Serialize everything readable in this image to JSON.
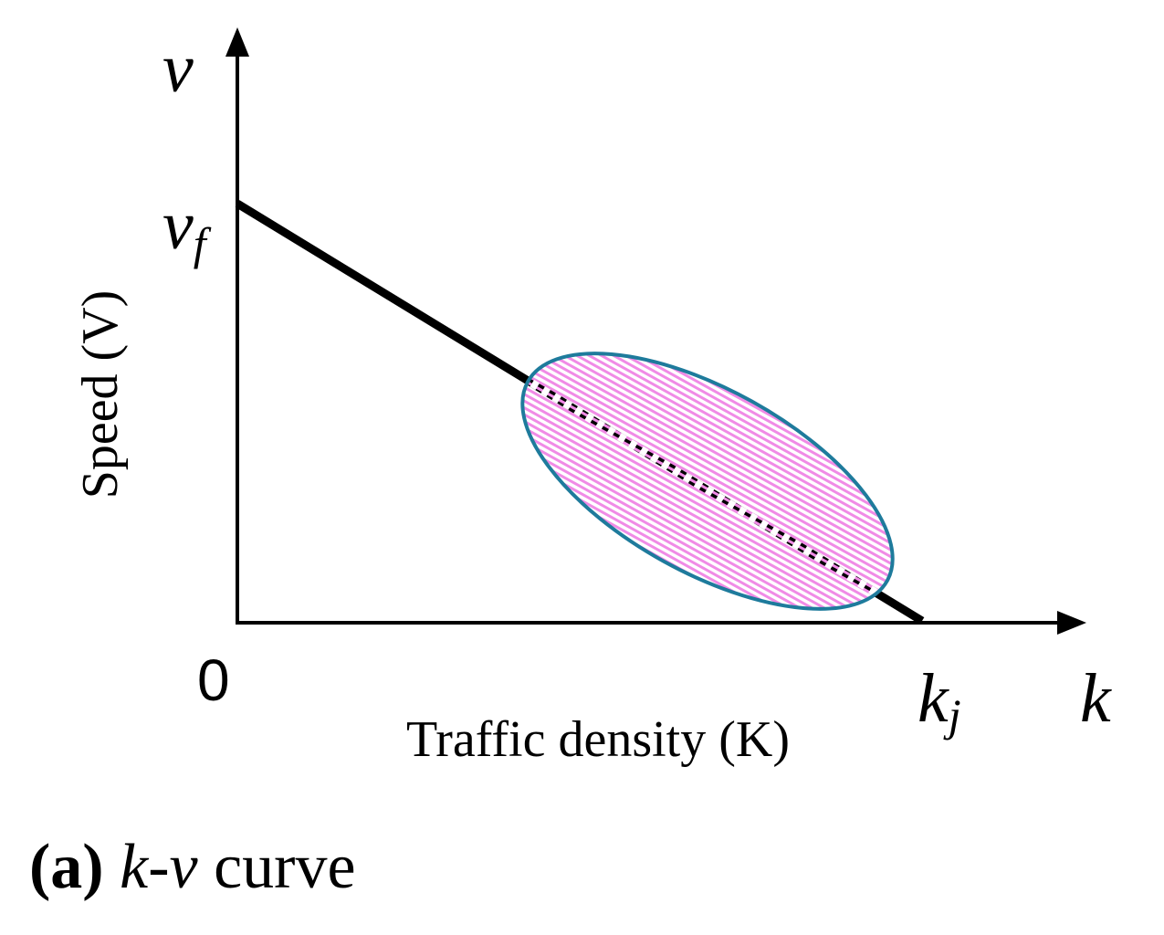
{
  "diagram": {
    "y_axis_symbol": "v",
    "x_axis_symbol": "k",
    "free_flow_speed_base": "v",
    "free_flow_speed_sub": "f",
    "jam_density_base": "k",
    "jam_density_sub": "j",
    "origin_label": "0",
    "y_axis_label": "Speed (V)",
    "x_axis_label": "Traffic density (K)",
    "caption_letter": "(a)",
    "caption_math": "k-v",
    "caption_text": " curve",
    "colors": {
      "axes": "#000000",
      "curve": "#000000",
      "ellipse_stroke": "#1e7b9c",
      "ellipse_hatch": "#f08be6"
    }
  }
}
